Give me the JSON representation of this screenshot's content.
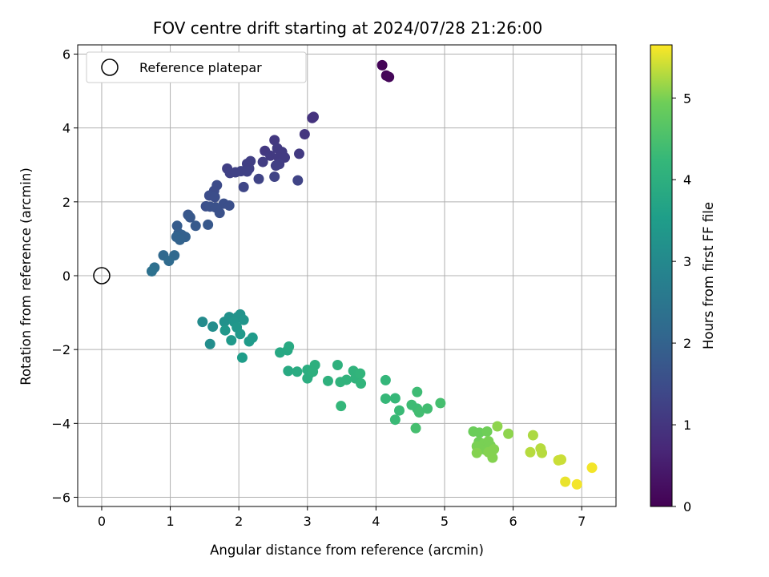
{
  "chart_data": {
    "type": "scatter",
    "title": "FOV centre drift starting at 2024/07/28 21:26:00",
    "xlabel": "Angular distance from reference (arcmin)",
    "ylabel": "Rotation from reference (arcmin)",
    "xlim": [
      -0.35,
      7.5
    ],
    "ylim": [
      -6.25,
      6.25
    ],
    "xticks": [
      0,
      1,
      2,
      3,
      4,
      5,
      6,
      7
    ],
    "yticks": [
      -6,
      -4,
      -2,
      0,
      2,
      4,
      6
    ],
    "grid": true,
    "legend": {
      "placement": "upper-left",
      "entries": [
        "Reference platepar"
      ]
    },
    "reference_point": {
      "x": 0,
      "y": 0,
      "label": "Reference platepar"
    },
    "colorbar": {
      "label": "Hours from first FF file",
      "colormap": "viridis",
      "range": [
        0,
        5.65
      ],
      "ticks": [
        0,
        1,
        2,
        3,
        4,
        5
      ]
    },
    "points": [
      {
        "x": 4.09,
        "y": 5.7,
        "c": 0.05
      },
      {
        "x": 4.15,
        "y": 5.42,
        "c": 0.08
      },
      {
        "x": 4.19,
        "y": 5.38,
        "c": 0.1
      },
      {
        "x": 3.07,
        "y": 4.27,
        "c": 0.95
      },
      {
        "x": 3.09,
        "y": 4.3,
        "c": 0.95
      },
      {
        "x": 2.96,
        "y": 3.83,
        "c": 1.0
      },
      {
        "x": 2.52,
        "y": 3.67,
        "c": 1.05
      },
      {
        "x": 2.38,
        "y": 3.38,
        "c": 1.05
      },
      {
        "x": 2.56,
        "y": 3.45,
        "c": 1.1
      },
      {
        "x": 2.63,
        "y": 3.35,
        "c": 1.1
      },
      {
        "x": 2.46,
        "y": 3.25,
        "c": 1.1
      },
      {
        "x": 2.58,
        "y": 3.2,
        "c": 1.1
      },
      {
        "x": 2.67,
        "y": 3.2,
        "c": 1.1
      },
      {
        "x": 2.88,
        "y": 3.3,
        "c": 1.1
      },
      {
        "x": 2.59,
        "y": 3.02,
        "c": 1.15
      },
      {
        "x": 2.35,
        "y": 3.08,
        "c": 1.15
      },
      {
        "x": 2.17,
        "y": 3.1,
        "c": 1.2
      },
      {
        "x": 2.12,
        "y": 3.03,
        "c": 1.2
      },
      {
        "x": 2.54,
        "y": 2.98,
        "c": 1.2
      },
      {
        "x": 2.15,
        "y": 2.9,
        "c": 1.2
      },
      {
        "x": 1.83,
        "y": 2.9,
        "c": 1.2
      },
      {
        "x": 1.87,
        "y": 2.78,
        "c": 1.25
      },
      {
        "x": 1.95,
        "y": 2.8,
        "c": 1.25
      },
      {
        "x": 2.03,
        "y": 2.83,
        "c": 1.25
      },
      {
        "x": 2.12,
        "y": 2.82,
        "c": 1.25
      },
      {
        "x": 2.29,
        "y": 2.62,
        "c": 1.3
      },
      {
        "x": 2.52,
        "y": 2.68,
        "c": 1.3
      },
      {
        "x": 2.86,
        "y": 2.58,
        "c": 1.3
      },
      {
        "x": 2.07,
        "y": 2.4,
        "c": 1.35
      },
      {
        "x": 1.68,
        "y": 2.45,
        "c": 1.45
      },
      {
        "x": 1.64,
        "y": 2.3,
        "c": 1.45
      },
      {
        "x": 1.57,
        "y": 2.17,
        "c": 1.5
      },
      {
        "x": 1.65,
        "y": 2.13,
        "c": 1.5
      },
      {
        "x": 1.78,
        "y": 1.95,
        "c": 1.55
      },
      {
        "x": 1.86,
        "y": 1.9,
        "c": 1.55
      },
      {
        "x": 1.52,
        "y": 1.88,
        "c": 1.55
      },
      {
        "x": 1.58,
        "y": 1.87,
        "c": 1.6
      },
      {
        "x": 1.66,
        "y": 1.85,
        "c": 1.6
      },
      {
        "x": 1.72,
        "y": 1.7,
        "c": 1.6
      },
      {
        "x": 1.26,
        "y": 1.65,
        "c": 1.7
      },
      {
        "x": 1.29,
        "y": 1.58,
        "c": 1.75
      },
      {
        "x": 1.55,
        "y": 1.38,
        "c": 1.75
      },
      {
        "x": 1.37,
        "y": 1.35,
        "c": 1.8
      },
      {
        "x": 1.1,
        "y": 1.35,
        "c": 1.85
      },
      {
        "x": 1.12,
        "y": 1.15,
        "c": 1.9
      },
      {
        "x": 1.17,
        "y": 1.1,
        "c": 1.95
      },
      {
        "x": 1.22,
        "y": 1.05,
        "c": 1.95
      },
      {
        "x": 1.09,
        "y": 1.05,
        "c": 2.0
      },
      {
        "x": 1.14,
        "y": 0.97,
        "c": 2.0
      },
      {
        "x": 0.9,
        "y": 0.55,
        "c": 2.15
      },
      {
        "x": 1.06,
        "y": 0.55,
        "c": 2.15
      },
      {
        "x": 0.98,
        "y": 0.4,
        "c": 2.2
      },
      {
        "x": 0.77,
        "y": 0.22,
        "c": 2.3
      },
      {
        "x": 0.73,
        "y": 0.12,
        "c": 2.35
      },
      {
        "x": 1.47,
        "y": -1.25,
        "c": 3.05
      },
      {
        "x": 1.62,
        "y": -1.38,
        "c": 3.1
      },
      {
        "x": 1.58,
        "y": -1.85,
        "c": 3.1
      },
      {
        "x": 1.79,
        "y": -1.25,
        "c": 3.2
      },
      {
        "x": 1.86,
        "y": -1.12,
        "c": 3.2
      },
      {
        "x": 1.98,
        "y": -1.12,
        "c": 3.25
      },
      {
        "x": 2.02,
        "y": -1.05,
        "c": 3.25
      },
      {
        "x": 1.93,
        "y": -1.25,
        "c": 3.3
      },
      {
        "x": 2.07,
        "y": -1.2,
        "c": 3.3
      },
      {
        "x": 1.8,
        "y": -1.48,
        "c": 3.35
      },
      {
        "x": 1.97,
        "y": -1.4,
        "c": 3.35
      },
      {
        "x": 2.02,
        "y": -1.58,
        "c": 3.4
      },
      {
        "x": 1.89,
        "y": -1.75,
        "c": 3.4
      },
      {
        "x": 2.15,
        "y": -1.78,
        "c": 3.45
      },
      {
        "x": 2.2,
        "y": -1.68,
        "c": 3.45
      },
      {
        "x": 2.05,
        "y": -2.22,
        "c": 3.5
      },
      {
        "x": 2.6,
        "y": -2.08,
        "c": 3.8
      },
      {
        "x": 2.71,
        "y": -2.02,
        "c": 3.8
      },
      {
        "x": 2.73,
        "y": -1.92,
        "c": 3.85
      },
      {
        "x": 2.72,
        "y": -2.58,
        "c": 3.85
      },
      {
        "x": 2.85,
        "y": -2.6,
        "c": 3.9
      },
      {
        "x": 3.0,
        "y": -2.55,
        "c": 3.95
      },
      {
        "x": 3.0,
        "y": -2.78,
        "c": 3.95
      },
      {
        "x": 3.03,
        "y": -2.65,
        "c": 3.95
      },
      {
        "x": 3.11,
        "y": -2.42,
        "c": 4.0
      },
      {
        "x": 3.08,
        "y": -2.6,
        "c": 4.0
      },
      {
        "x": 3.3,
        "y": -2.85,
        "c": 4.05
      },
      {
        "x": 3.44,
        "y": -2.42,
        "c": 4.05
      },
      {
        "x": 3.48,
        "y": -2.88,
        "c": 4.1
      },
      {
        "x": 3.57,
        "y": -2.82,
        "c": 4.1
      },
      {
        "x": 3.67,
        "y": -2.58,
        "c": 4.1
      },
      {
        "x": 3.7,
        "y": -2.78,
        "c": 4.1
      },
      {
        "x": 3.77,
        "y": -2.65,
        "c": 4.15
      },
      {
        "x": 3.78,
        "y": -2.92,
        "c": 4.15
      },
      {
        "x": 3.49,
        "y": -3.53,
        "c": 4.2
      },
      {
        "x": 4.14,
        "y": -2.83,
        "c": 4.2
      },
      {
        "x": 4.14,
        "y": -3.33,
        "c": 4.25
      },
      {
        "x": 4.28,
        "y": -3.32,
        "c": 4.25
      },
      {
        "x": 4.34,
        "y": -3.65,
        "c": 4.3
      },
      {
        "x": 4.28,
        "y": -3.9,
        "c": 4.3
      },
      {
        "x": 4.52,
        "y": -3.5,
        "c": 4.35
      },
      {
        "x": 4.6,
        "y": -3.15,
        "c": 4.35
      },
      {
        "x": 4.6,
        "y": -3.6,
        "c": 4.35
      },
      {
        "x": 4.63,
        "y": -3.7,
        "c": 4.4
      },
      {
        "x": 4.75,
        "y": -3.6,
        "c": 4.4
      },
      {
        "x": 4.94,
        "y": -3.45,
        "c": 4.45
      },
      {
        "x": 4.58,
        "y": -4.13,
        "c": 4.45
      },
      {
        "x": 5.42,
        "y": -4.22,
        "c": 4.9
      },
      {
        "x": 5.51,
        "y": -4.25,
        "c": 4.9
      },
      {
        "x": 5.62,
        "y": -4.22,
        "c": 4.95
      },
      {
        "x": 5.5,
        "y": -4.5,
        "c": 4.95
      },
      {
        "x": 5.57,
        "y": -4.55,
        "c": 5.0
      },
      {
        "x": 5.64,
        "y": -4.48,
        "c": 5.0
      },
      {
        "x": 5.47,
        "y": -4.62,
        "c": 5.0
      },
      {
        "x": 5.53,
        "y": -4.7,
        "c": 5.0
      },
      {
        "x": 5.6,
        "y": -4.72,
        "c": 5.0
      },
      {
        "x": 5.67,
        "y": -4.6,
        "c": 5.0
      },
      {
        "x": 5.72,
        "y": -4.7,
        "c": 5.05
      },
      {
        "x": 5.7,
        "y": -4.93,
        "c": 5.05
      },
      {
        "x": 5.47,
        "y": -4.8,
        "c": 5.05
      },
      {
        "x": 5.64,
        "y": -4.78,
        "c": 5.05
      },
      {
        "x": 5.77,
        "y": -4.08,
        "c": 5.1
      },
      {
        "x": 5.93,
        "y": -4.28,
        "c": 5.1
      },
      {
        "x": 6.29,
        "y": -4.32,
        "c": 5.25
      },
      {
        "x": 6.25,
        "y": -4.78,
        "c": 5.3
      },
      {
        "x": 6.4,
        "y": -4.68,
        "c": 5.3
      },
      {
        "x": 6.42,
        "y": -4.8,
        "c": 5.3
      },
      {
        "x": 6.66,
        "y": -5.0,
        "c": 5.4
      },
      {
        "x": 6.7,
        "y": -4.98,
        "c": 5.4
      },
      {
        "x": 6.76,
        "y": -5.58,
        "c": 5.55
      },
      {
        "x": 6.93,
        "y": -5.65,
        "c": 5.6
      },
      {
        "x": 7.15,
        "y": -5.2,
        "c": 5.6
      }
    ]
  }
}
